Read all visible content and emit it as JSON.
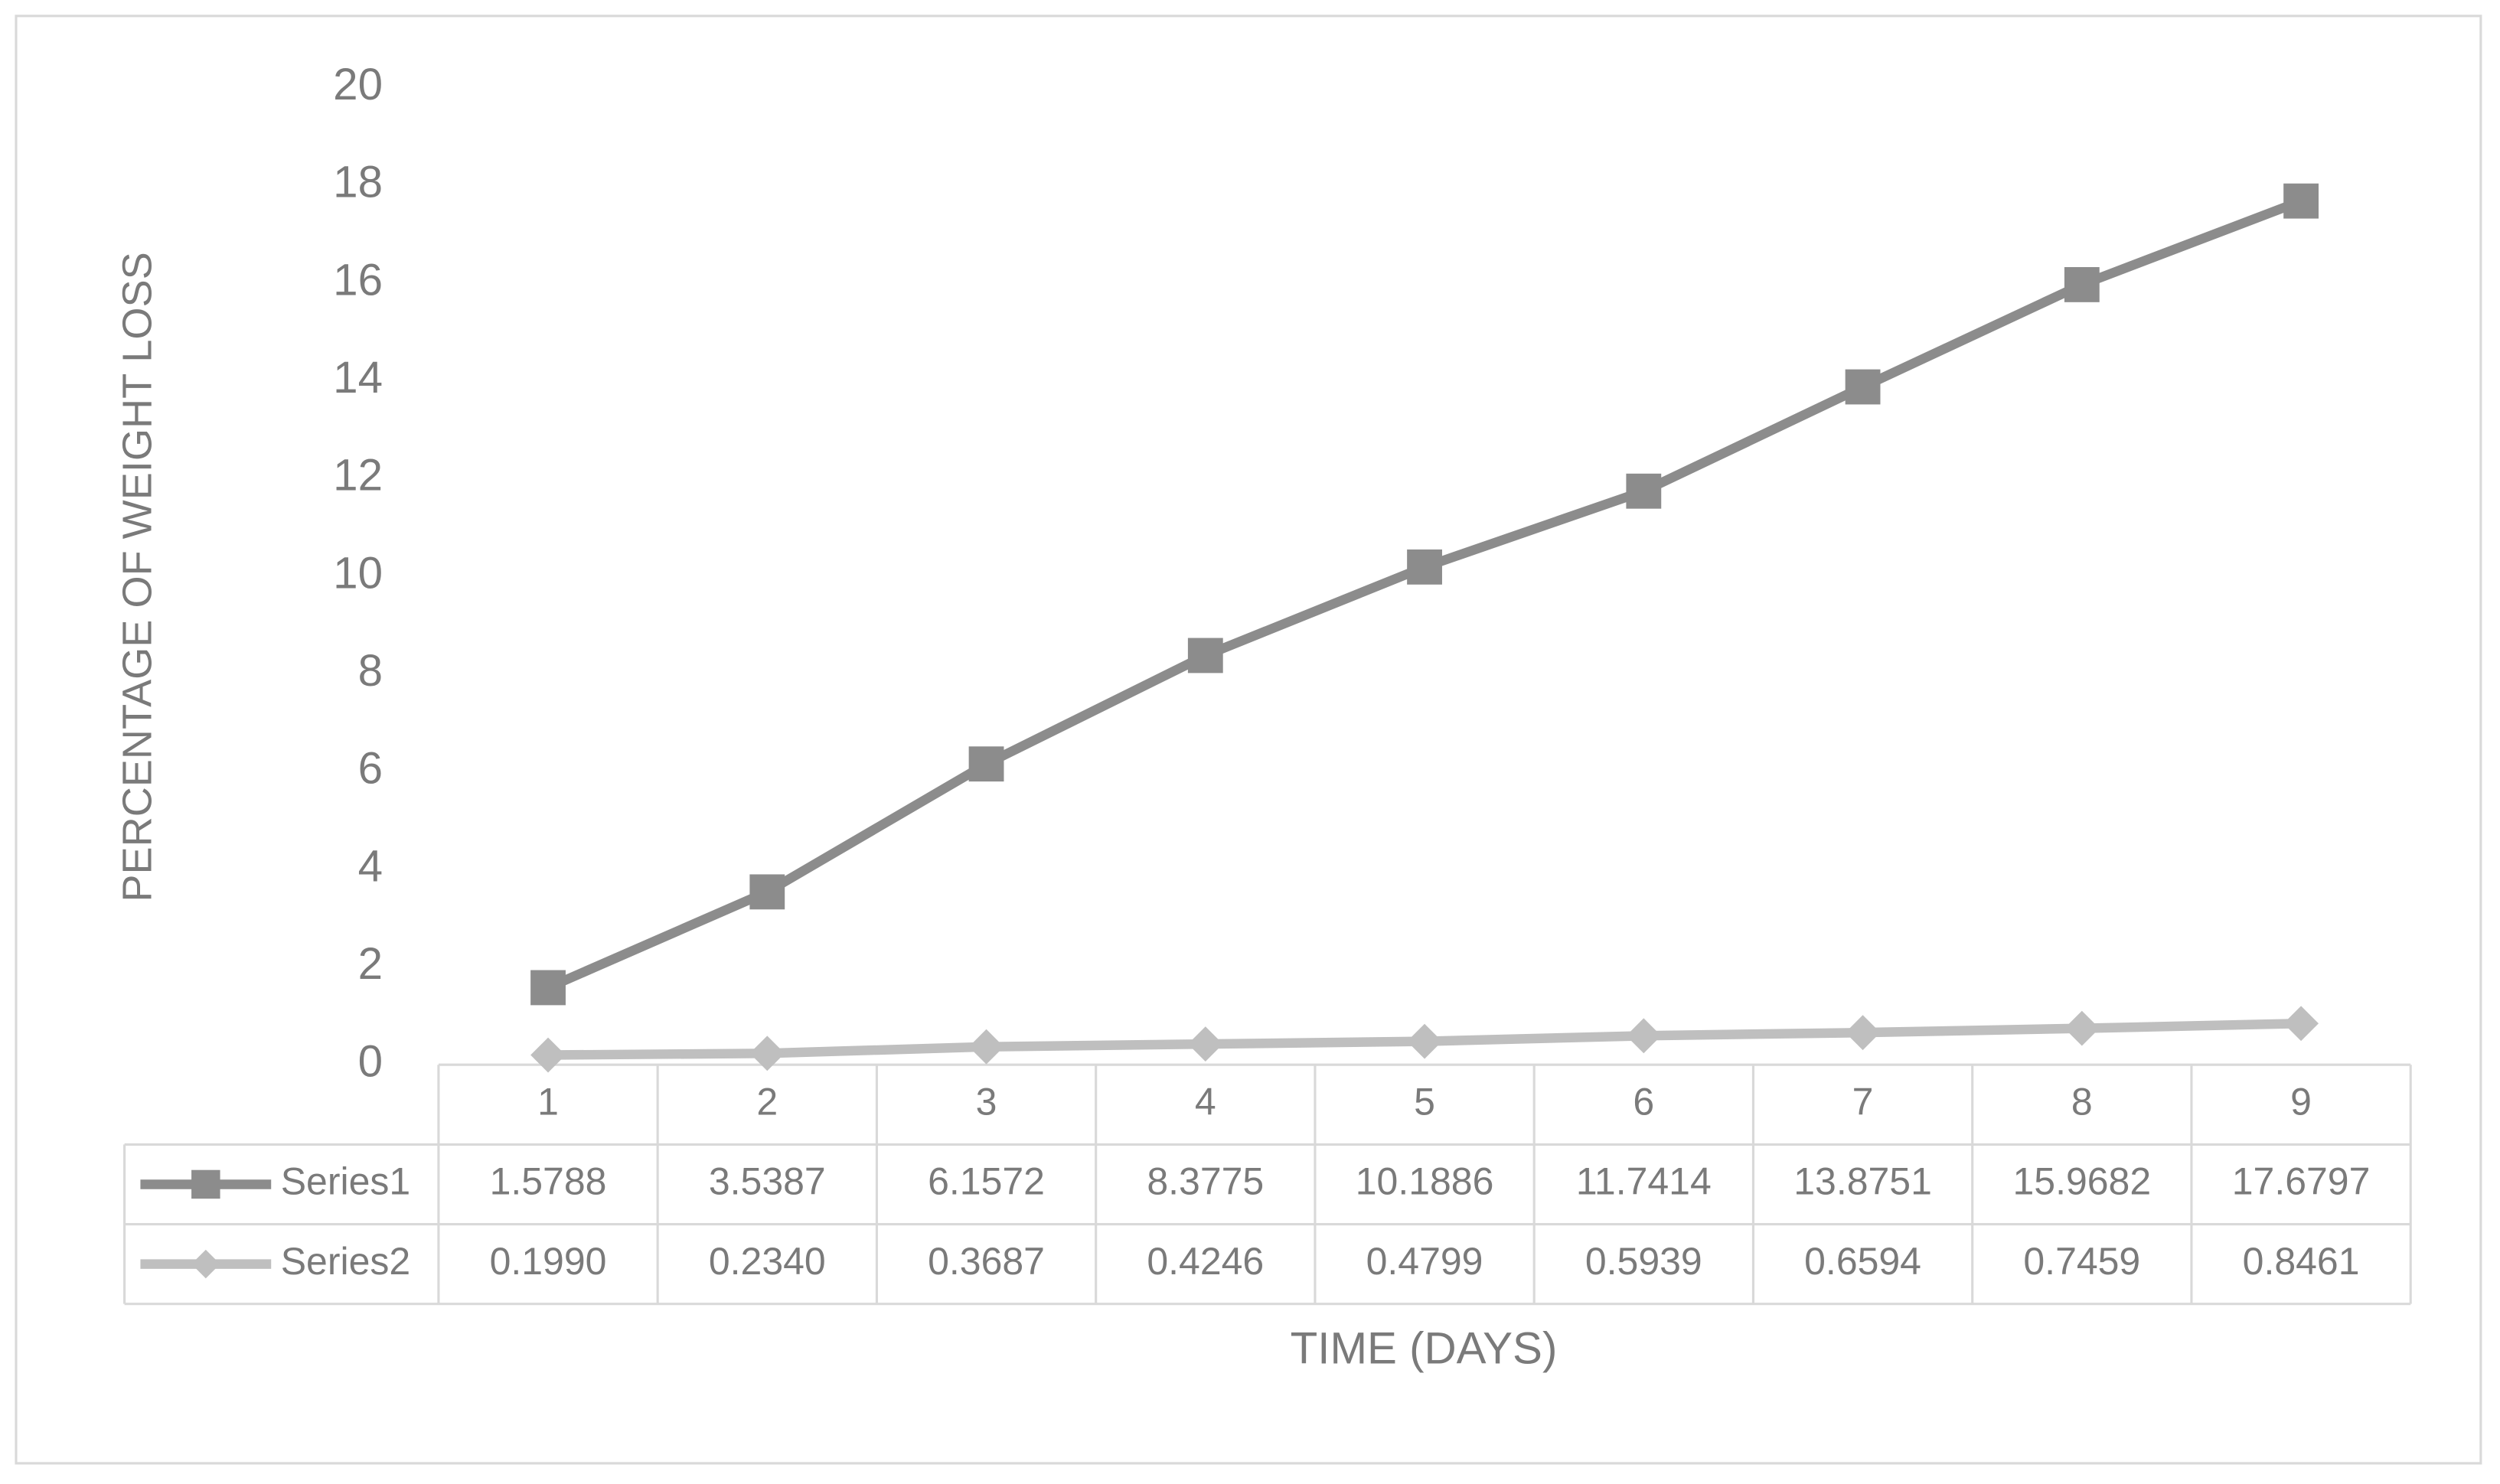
{
  "chart_data": {
    "type": "line",
    "y_axis_label": "PERCENTAGE OF WEIGHT LOSS",
    "x_axis_label": "TIME (DAYS)",
    "categories": [
      "1",
      "2",
      "3",
      "4",
      "5",
      "6",
      "7",
      "8",
      "9"
    ],
    "series": [
      {
        "name": "Series1",
        "color": "#8c8c8c",
        "marker": "square",
        "values": [
          1.5788,
          3.5387,
          6.1572,
          8.3775,
          10.1886,
          11.7414,
          13.8751,
          15.9682,
          17.6797
        ],
        "value_labels": [
          "1.5788",
          "3.5387",
          "6.1572",
          "8.3775",
          "10.1886",
          "11.7414",
          "13.8751",
          "15.9682",
          "17.6797"
        ]
      },
      {
        "name": "Series2",
        "color": "#bfbfbf",
        "marker": "diamond",
        "values": [
          0.199,
          0.234,
          0.3687,
          0.4246,
          0.4799,
          0.5939,
          0.6594,
          0.7459,
          0.8461
        ],
        "value_labels": [
          "0.1990",
          "0.2340",
          "0.3687",
          "0.4246",
          "0.4799",
          "0.5939",
          "0.6594",
          "0.7459",
          "0.8461"
        ]
      }
    ],
    "ylim": [
      0,
      20
    ],
    "yticks": [
      0,
      2,
      4,
      6,
      8,
      10,
      12,
      14,
      16,
      18,
      20
    ],
    "grid": false,
    "data_table": true
  }
}
